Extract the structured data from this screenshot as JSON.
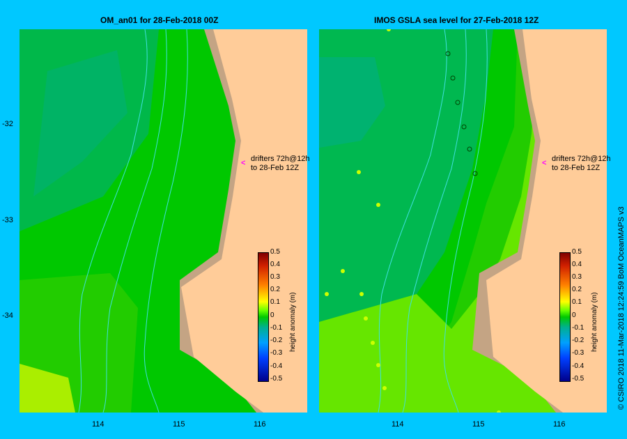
{
  "panels": [
    {
      "title": "OM_an01  for 28-Feb-2018 00Z"
    },
    {
      "title": "IMOS GSLA sea level   for 27-Feb-2018 12Z"
    }
  ],
  "map": {
    "lat_ticks": [
      "-32",
      "-33",
      "-34"
    ],
    "lon_ticks": [
      "114",
      "115",
      "116"
    ]
  },
  "annotation": {
    "line1": "drifters 72h@12h",
    "line2": "to 28-Feb 12Z",
    "arrow_color": "#ff00ff"
  },
  "colorbar": {
    "title": "height anomaly (m)",
    "ticks": [
      "0.5",
      "0.4",
      "0.3",
      "0.2",
      "0.1",
      "0",
      "-0.1",
      "-0.2",
      "-0.3",
      "-0.4",
      "-0.5"
    ]
  },
  "credit": "© CSIRO 2018   11-Mar-2018 12:24:59 BoM OceanMAPS v3",
  "colors": {
    "background": "#00c8ff",
    "land": "#ffcc99",
    "shelf": "#c4a484",
    "contour": "#40e0e0"
  }
}
